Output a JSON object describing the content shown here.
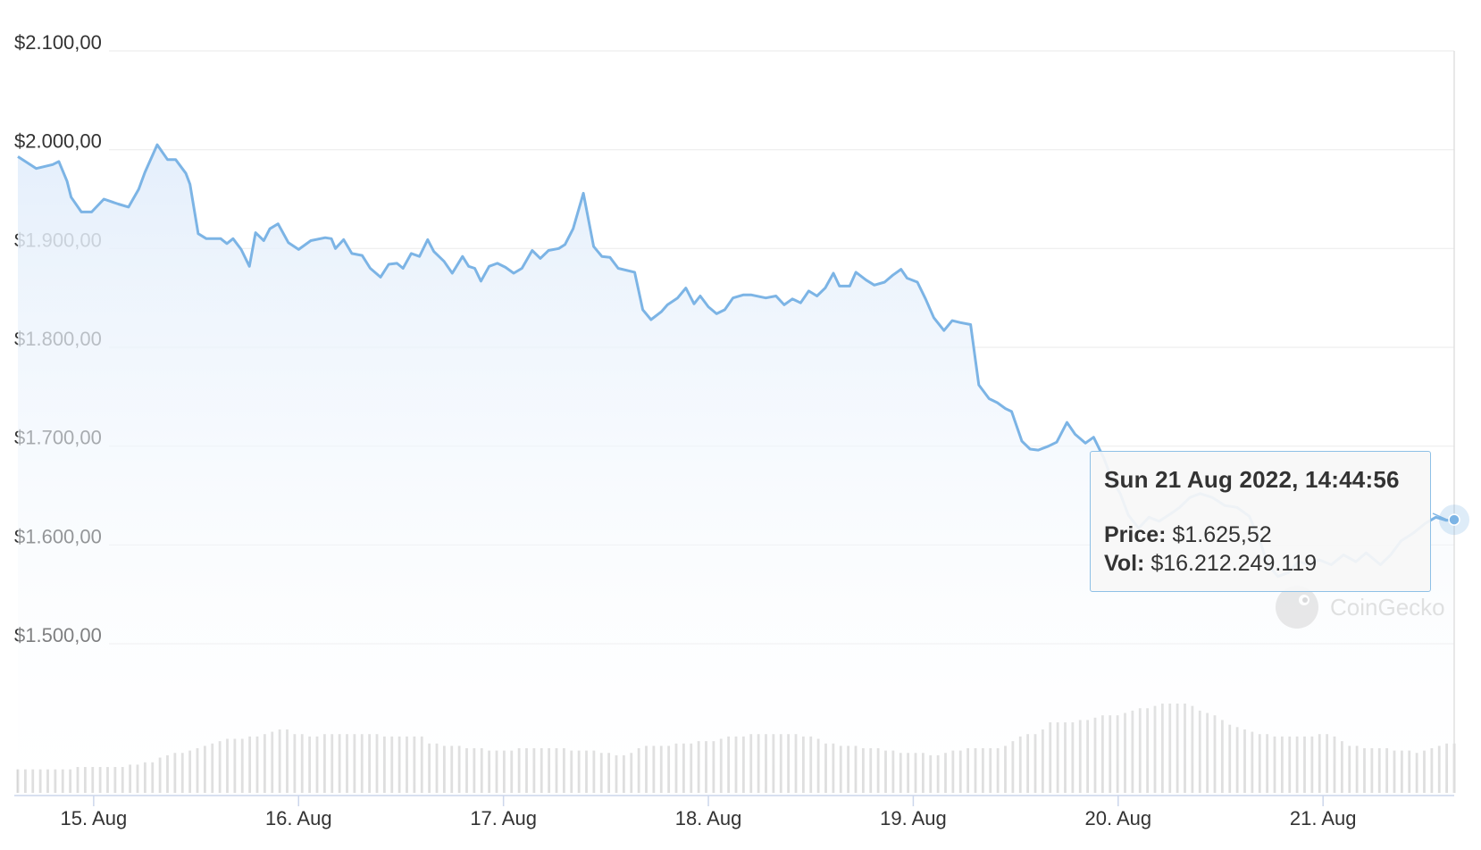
{
  "chart_data": {
    "type": "line",
    "y_tick_labels": [
      "$2.100,00",
      "$2.000,00",
      "$1.900,00",
      "$1.800,00",
      "$1.700,00",
      "$1.600,00",
      "$1.500,00"
    ],
    "y_tick_values": [
      2100,
      2000,
      1900,
      1800,
      1700,
      1600,
      1500
    ],
    "ylim": [
      1500,
      2100
    ],
    "x_tick_labels": [
      "15. Aug",
      "16. Aug",
      "17. Aug",
      "18. Aug",
      "19. Aug",
      "20. Aug",
      "21. Aug"
    ],
    "x_tick_positions": [
      15,
      16,
      17,
      18,
      19,
      20,
      21
    ],
    "xlim": [
      14.63,
      21.64
    ],
    "grid": true,
    "series": [
      {
        "values": [
          [
            14.63,
            1993
          ],
          [
            14.72,
            1981
          ],
          [
            14.8,
            1985
          ],
          [
            14.83,
            1988
          ],
          [
            14.87,
            1968
          ],
          [
            14.89,
            1952
          ],
          [
            14.94,
            1937
          ],
          [
            14.99,
            1937
          ],
          [
            15.05,
            1950
          ],
          [
            15.12,
            1945
          ],
          [
            15.17,
            1942
          ],
          [
            15.22,
            1960
          ],
          [
            15.25,
            1977
          ],
          [
            15.31,
            2005
          ],
          [
            15.36,
            1990
          ],
          [
            15.4,
            1990
          ],
          [
            15.45,
            1976
          ],
          [
            15.47,
            1965
          ],
          [
            15.51,
            1915
          ],
          [
            15.55,
            1910
          ],
          [
            15.62,
            1910
          ],
          [
            15.65,
            1905
          ],
          [
            15.68,
            1910
          ],
          [
            15.72,
            1899
          ],
          [
            15.76,
            1882
          ],
          [
            15.79,
            1916
          ],
          [
            15.83,
            1908
          ],
          [
            15.86,
            1920
          ],
          [
            15.9,
            1925
          ],
          [
            15.95,
            1906
          ],
          [
            16.0,
            1899
          ],
          [
            16.06,
            1908
          ],
          [
            16.13,
            1911
          ],
          [
            16.16,
            1910
          ],
          [
            16.18,
            1900
          ],
          [
            16.22,
            1909
          ],
          [
            16.26,
            1895
          ],
          [
            16.31,
            1893
          ],
          [
            16.35,
            1880
          ],
          [
            16.4,
            1871
          ],
          [
            16.44,
            1884
          ],
          [
            16.48,
            1885
          ],
          [
            16.51,
            1880
          ],
          [
            16.55,
            1895
          ],
          [
            16.59,
            1892
          ],
          [
            16.63,
            1909
          ],
          [
            16.66,
            1897
          ],
          [
            16.71,
            1887
          ],
          [
            16.75,
            1875
          ],
          [
            16.8,
            1892
          ],
          [
            16.83,
            1882
          ],
          [
            16.86,
            1880
          ],
          [
            16.89,
            1867
          ],
          [
            16.93,
            1882
          ],
          [
            16.97,
            1885
          ],
          [
            17.01,
            1881
          ],
          [
            17.05,
            1875
          ],
          [
            17.09,
            1880
          ],
          [
            17.14,
            1898
          ],
          [
            17.18,
            1890
          ],
          [
            17.22,
            1898
          ],
          [
            17.27,
            1900
          ],
          [
            17.3,
            1904
          ],
          [
            17.34,
            1920
          ],
          [
            17.39,
            1956
          ],
          [
            17.44,
            1902
          ],
          [
            17.48,
            1892
          ],
          [
            17.52,
            1891
          ],
          [
            17.56,
            1880
          ],
          [
            17.64,
            1876
          ],
          [
            17.68,
            1838
          ],
          [
            17.72,
            1828
          ],
          [
            17.77,
            1836
          ],
          [
            17.8,
            1843
          ],
          [
            17.85,
            1850
          ],
          [
            17.89,
            1860
          ],
          [
            17.93,
            1844
          ],
          [
            17.96,
            1852
          ],
          [
            18.0,
            1841
          ],
          [
            18.04,
            1834
          ],
          [
            18.08,
            1838
          ],
          [
            18.12,
            1850
          ],
          [
            18.17,
            1853
          ],
          [
            18.21,
            1853
          ],
          [
            18.28,
            1850
          ],
          [
            18.33,
            1852
          ],
          [
            18.37,
            1843
          ],
          [
            18.41,
            1849
          ],
          [
            18.45,
            1845
          ],
          [
            18.49,
            1857
          ],
          [
            18.53,
            1852
          ],
          [
            18.57,
            1860
          ],
          [
            18.61,
            1875
          ],
          [
            18.64,
            1862
          ],
          [
            18.69,
            1862
          ],
          [
            18.72,
            1876
          ],
          [
            18.77,
            1868
          ],
          [
            18.81,
            1863
          ],
          [
            18.86,
            1866
          ],
          [
            18.9,
            1873
          ],
          [
            18.94,
            1879
          ],
          [
            18.97,
            1870
          ],
          [
            19.02,
            1866
          ],
          [
            19.06,
            1849
          ],
          [
            19.1,
            1830
          ],
          [
            19.15,
            1817
          ],
          [
            19.19,
            1827
          ],
          [
            19.23,
            1825
          ],
          [
            19.28,
            1823
          ],
          [
            19.32,
            1762
          ],
          [
            19.37,
            1748
          ],
          [
            19.41,
            1744
          ],
          [
            19.45,
            1738
          ],
          [
            19.48,
            1735
          ],
          [
            19.53,
            1705
          ],
          [
            19.57,
            1697
          ],
          [
            19.61,
            1696
          ],
          [
            19.66,
            1700
          ],
          [
            19.7,
            1704
          ],
          [
            19.75,
            1724
          ],
          [
            19.79,
            1712
          ],
          [
            19.84,
            1703
          ],
          [
            19.88,
            1709
          ],
          [
            19.93,
            1688
          ],
          [
            19.97,
            1666
          ],
          [
            20.01,
            1652
          ],
          [
            20.05,
            1630
          ],
          [
            20.1,
            1617
          ],
          [
            20.15,
            1628
          ],
          [
            20.2,
            1624
          ],
          [
            20.26,
            1632
          ],
          [
            20.3,
            1638
          ],
          [
            20.35,
            1648
          ],
          [
            20.4,
            1652
          ],
          [
            20.46,
            1648
          ],
          [
            20.52,
            1640
          ],
          [
            20.58,
            1638
          ],
          [
            20.64,
            1629
          ],
          [
            20.69,
            1605
          ],
          [
            20.73,
            1580
          ],
          [
            20.78,
            1568
          ],
          [
            20.83,
            1572
          ],
          [
            20.88,
            1583
          ],
          [
            20.93,
            1580
          ],
          [
            20.98,
            1585
          ],
          [
            21.04,
            1580
          ],
          [
            21.1,
            1590
          ],
          [
            21.16,
            1583
          ],
          [
            21.21,
            1592
          ],
          [
            21.28,
            1580
          ],
          [
            21.33,
            1590
          ],
          [
            21.38,
            1604
          ],
          [
            21.44,
            1612
          ],
          [
            21.5,
            1622
          ],
          [
            21.55,
            1628
          ],
          [
            21.6,
            1625
          ],
          [
            21.64,
            1625.52
          ]
        ]
      }
    ],
    "volume_bars": [
      0.1,
      0.1,
      0.1,
      0.1,
      0.1,
      0.1,
      0.1,
      0.1,
      0.11,
      0.11,
      0.11,
      0.11,
      0.11,
      0.11,
      0.11,
      0.12,
      0.12,
      0.13,
      0.13,
      0.15,
      0.16,
      0.17,
      0.17,
      0.18,
      0.19,
      0.2,
      0.21,
      0.22,
      0.23,
      0.23,
      0.23,
      0.24,
      0.24,
      0.25,
      0.26,
      0.27,
      0.27,
      0.25,
      0.25,
      0.24,
      0.24,
      0.25,
      0.25,
      0.25,
      0.25,
      0.25,
      0.25,
      0.25,
      0.25,
      0.24,
      0.24,
      0.24,
      0.24,
      0.24,
      0.24,
      0.21,
      0.21,
      0.2,
      0.2,
      0.2,
      0.19,
      0.19,
      0.19,
      0.18,
      0.18,
      0.18,
      0.18,
      0.19,
      0.19,
      0.19,
      0.19,
      0.19,
      0.19,
      0.19,
      0.18,
      0.18,
      0.18,
      0.18,
      0.17,
      0.17,
      0.16,
      0.16,
      0.17,
      0.19,
      0.2,
      0.2,
      0.2,
      0.2,
      0.21,
      0.21,
      0.21,
      0.22,
      0.22,
      0.22,
      0.23,
      0.24,
      0.24,
      0.24,
      0.25,
      0.25,
      0.25,
      0.25,
      0.25,
      0.25,
      0.25,
      0.24,
      0.24,
      0.23,
      0.21,
      0.21,
      0.2,
      0.2,
      0.2,
      0.19,
      0.19,
      0.19,
      0.18,
      0.18,
      0.17,
      0.17,
      0.17,
      0.17,
      0.16,
      0.16,
      0.17,
      0.18,
      0.18,
      0.19,
      0.19,
      0.19,
      0.19,
      0.19,
      0.2,
      0.22,
      0.24,
      0.25,
      0.25,
      0.27,
      0.3,
      0.3,
      0.3,
      0.3,
      0.31,
      0.31,
      0.32,
      0.33,
      0.33,
      0.33,
      0.34,
      0.35,
      0.36,
      0.36,
      0.37,
      0.38,
      0.38,
      0.38,
      0.38,
      0.37,
      0.35,
      0.34,
      0.33,
      0.31,
      0.29,
      0.28,
      0.27,
      0.26,
      0.25,
      0.25,
      0.24,
      0.24,
      0.24,
      0.24,
      0.24,
      0.24,
      0.25,
      0.25,
      0.24,
      0.22,
      0.2,
      0.2,
      0.19,
      0.19,
      0.19,
      0.19,
      0.18,
      0.18,
      0.18,
      0.17,
      0.18,
      0.19,
      0.2,
      0.21,
      0.21
    ],
    "volume_bar_x_start": 14.63,
    "volume_bar_x_end": 21.64,
    "colors": {
      "line": "#7cb4e5",
      "area_top": "#e6f0fb",
      "grid": "#eeeeee",
      "volume": "#d6d6d6",
      "axis": "#ccd6eb"
    }
  },
  "tooltip": {
    "title": "Sun 21 Aug 2022, 14:44:56",
    "price_label": "Price:",
    "price_value": "$1.625,52",
    "vol_label": "Vol:",
    "vol_value": "$16.212.249.119"
  },
  "watermark": {
    "text": "CoinGecko",
    "icon": "gecko-icon"
  }
}
